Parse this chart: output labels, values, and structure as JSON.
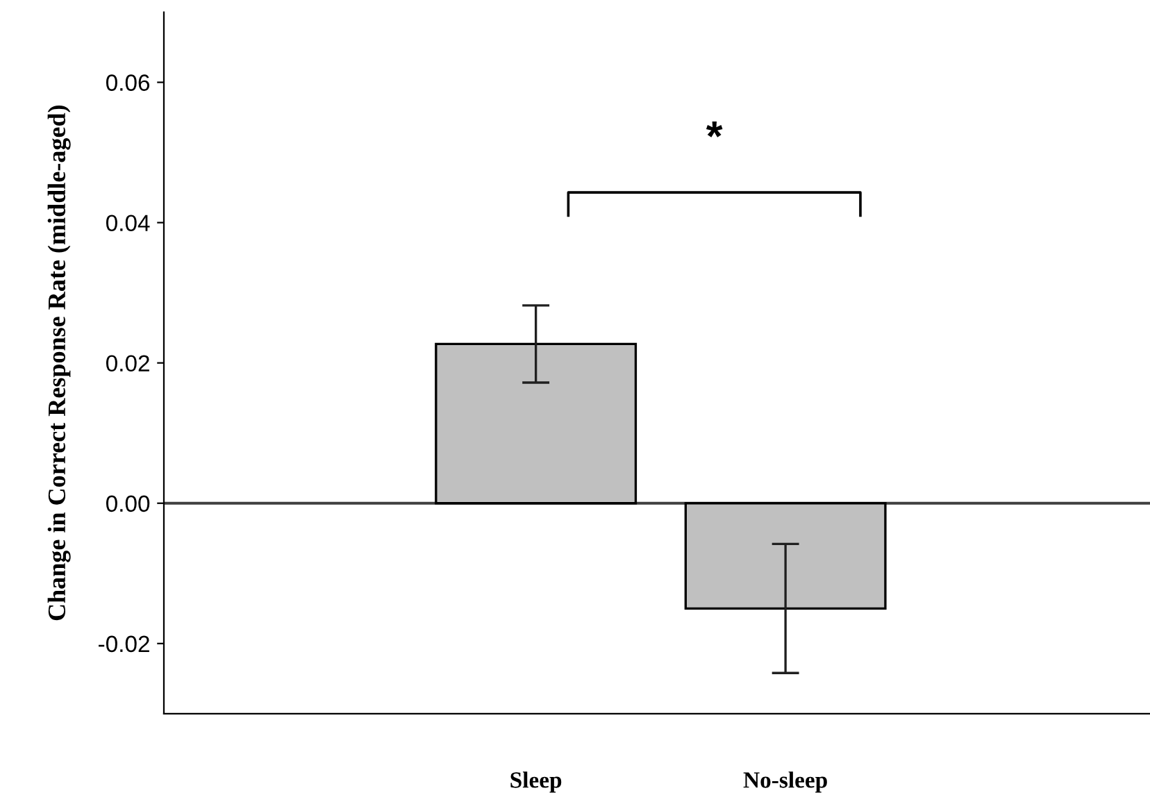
{
  "chart_data": {
    "type": "bar",
    "ylabel": "Change in Correct Response Rate (middle-aged)",
    "categories": [
      "Sleep",
      "No-sleep"
    ],
    "values": [
      0.0227,
      -0.015
    ],
    "errors": [
      0.0055,
      0.0092
    ],
    "color": "#c0c0c0",
    "ylim": [
      -0.03,
      0.07
    ],
    "yticks": [
      {
        "value": -0.02,
        "label": "-0.02"
      },
      {
        "value": 0.0,
        "label": "0.00"
      },
      {
        "value": 0.02,
        "label": "0.02"
      },
      {
        "value": 0.04,
        "label": "0.04"
      },
      {
        "value": 0.06,
        "label": "0.06"
      }
    ],
    "ref_lines": [
      {
        "axis": "y",
        "value": 0,
        "color": "#404040"
      }
    ],
    "annotations": [
      "*"
    ],
    "grid": false,
    "legend": false
  }
}
